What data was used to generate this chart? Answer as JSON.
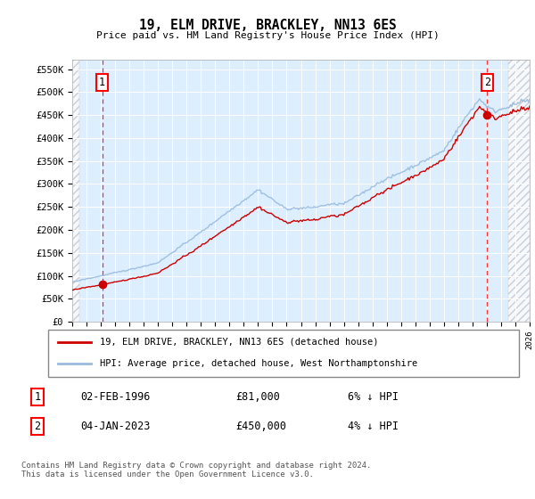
{
  "title": "19, ELM DRIVE, BRACKLEY, NN13 6ES",
  "subtitle": "Price paid vs. HM Land Registry's House Price Index (HPI)",
  "ylabel_ticks": [
    "£0",
    "£50K",
    "£100K",
    "£150K",
    "£200K",
    "£250K",
    "£300K",
    "£350K",
    "£400K",
    "£450K",
    "£500K",
    "£550K"
  ],
  "ytick_values": [
    0,
    50000,
    100000,
    150000,
    200000,
    250000,
    300000,
    350000,
    400000,
    450000,
    500000,
    550000
  ],
  "xmin": 1994.0,
  "xmax": 2026.0,
  "ymin": 0,
  "ymax": 570000,
  "sale1_date": 1996.09,
  "sale1_price": 81000,
  "sale1_label": "1",
  "sale2_date": 2023.03,
  "sale2_price": 450000,
  "sale2_label": "2",
  "line_color_red": "#cc0000",
  "hpi_line_color": "#99bbdd",
  "legend1_text": "19, ELM DRIVE, BRACKLEY, NN13 6ES (detached house)",
  "legend2_text": "HPI: Average price, detached house, West Northamptonshire",
  "note1_label": "1",
  "note1_date": "02-FEB-1996",
  "note1_price": "£81,000",
  "note1_hpi": "6% ↓ HPI",
  "note2_label": "2",
  "note2_date": "04-JAN-2023",
  "note2_price": "£450,000",
  "note2_hpi": "4% ↓ HPI",
  "footer": "Contains HM Land Registry data © Crown copyright and database right 2024.\nThis data is licensed under the Open Government Licence v3.0.",
  "bg_plot_color": "#ddeeff",
  "hatch_color": "#bbbbbb",
  "grid_color": "#ffffff",
  "sale1_discount": 0.06,
  "sale2_discount": 0.04
}
